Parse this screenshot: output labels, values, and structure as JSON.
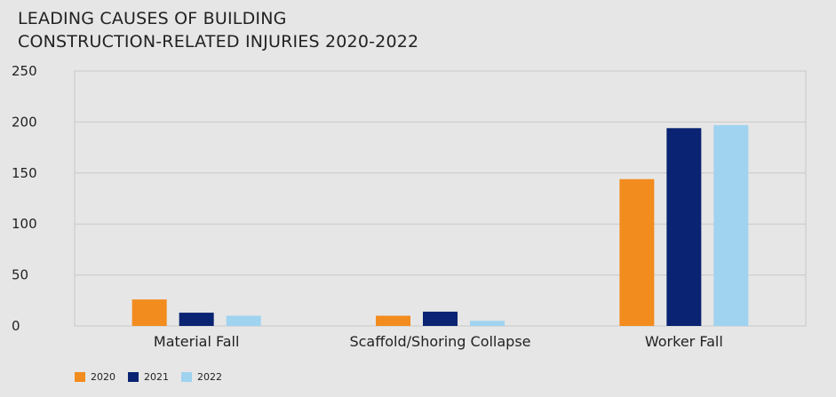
{
  "chart_data": {
    "type": "bar",
    "title_lines": [
      "LEADING CAUSES OF BUILDING",
      "CONSTRUCTION-RELATED INJURIES 2020-2022"
    ],
    "categories": [
      "Material Fall",
      "Scaffold/Shoring Collapse",
      "Worker Fall"
    ],
    "series": [
      {
        "name": "2020",
        "color": "#f28c1e",
        "values": [
          26,
          10,
          144
        ]
      },
      {
        "name": "2021",
        "color": "#0a2372",
        "values": [
          13,
          14,
          194
        ]
      },
      {
        "name": "2022",
        "color": "#9fd3f0",
        "values": [
          10,
          5,
          197
        ]
      }
    ],
    "y_ticks": [
      "0",
      "50",
      "100",
      "150",
      "200",
      "250"
    ],
    "ylim": [
      0,
      250
    ],
    "xlabel": "",
    "ylabel": "",
    "grid": true,
    "legend_position": "bottom-left"
  }
}
